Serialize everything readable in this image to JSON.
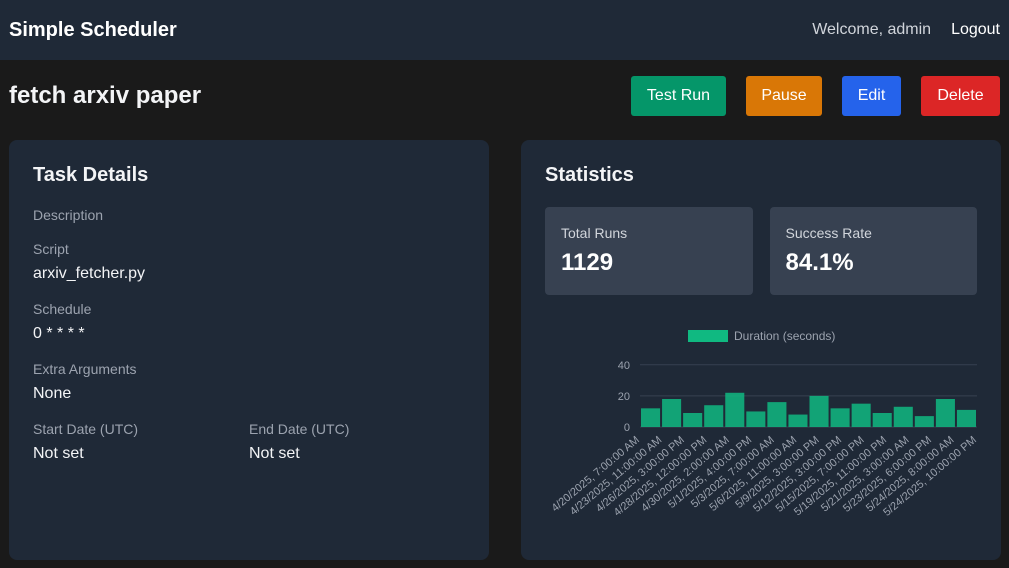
{
  "navbar": {
    "brand": "Simple Scheduler",
    "welcome": "Welcome, admin",
    "logout": "Logout"
  },
  "page": {
    "title": "fetch arxiv paper"
  },
  "actions": {
    "test_run": "Test Run",
    "pause": "Pause",
    "edit": "Edit",
    "delete": "Delete"
  },
  "colors": {
    "test_run": "#059669",
    "pause": "#d97706",
    "edit": "#2563eb",
    "delete": "#dc2626",
    "series": "#10b981"
  },
  "details": {
    "title": "Task Details",
    "description_label": "Description",
    "script_label": "Script",
    "script_value": "arxiv_fetcher.py",
    "schedule_label": "Schedule",
    "schedule_value": "0 * * * *",
    "extra_args_label": "Extra Arguments",
    "extra_args_value": "None",
    "start_date_label": "Start Date (UTC)",
    "start_date_value": "Not set",
    "end_date_label": "End Date (UTC)",
    "end_date_value": "Not set"
  },
  "statistics": {
    "title": "Statistics",
    "total_runs_label": "Total Runs",
    "total_runs_value": "1129",
    "success_rate_label": "Success Rate",
    "success_rate_value": "84.1%"
  },
  "chart_data": {
    "type": "bar",
    "legend": "Duration (seconds)",
    "yticks": [
      0,
      20,
      40
    ],
    "ylim": [
      0,
      45
    ],
    "categories": [
      "4/20/2025, 7:00:00 AM",
      "4/23/2025, 11:00:00 AM",
      "4/26/2025, 3:00:00 PM",
      "4/28/2025, 12:00:00 PM",
      "4/30/2025, 2:00:00 AM",
      "5/1/2025, 4:00:00 PM",
      "5/3/2025, 7:00:00 AM",
      "5/6/2025, 11:00:00 AM",
      "5/9/2025, 3:00:00 PM",
      "5/12/2025, 3:00:00 PM",
      "5/15/2025, 7:00:00 PM",
      "5/19/2025, 11:00:00 PM",
      "5/21/2025, 3:00:00 AM",
      "5/23/2025, 6:00:00 PM",
      "5/24/2025, 8:00:00 AM",
      "5/24/2025, 10:00:00 PM"
    ],
    "values": [
      12,
      18,
      9,
      14,
      22,
      10,
      16,
      8,
      20,
      12,
      15,
      9,
      13,
      7,
      18,
      11
    ]
  }
}
